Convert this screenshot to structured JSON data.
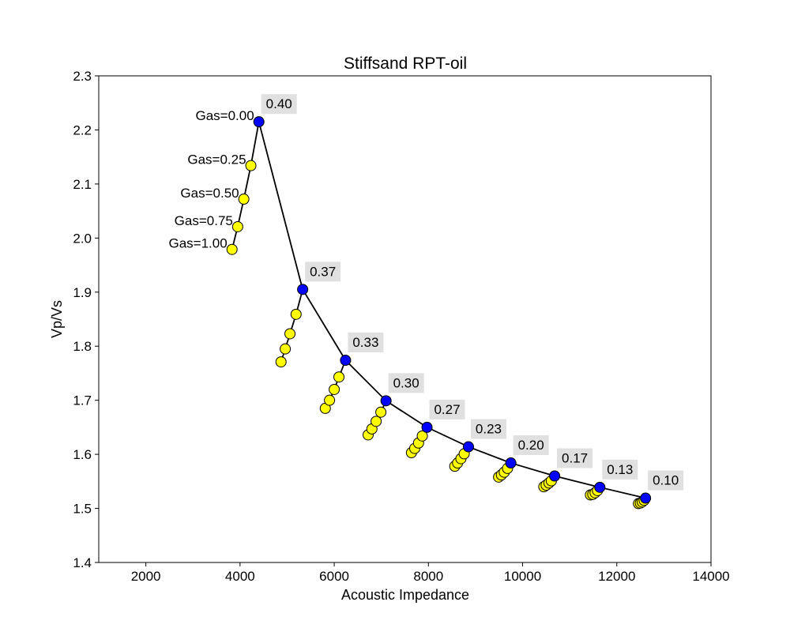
{
  "chart_data": {
    "type": "scatter",
    "title": "Stiffsand RPT-oil",
    "xlabel": "Acoustic Impedance",
    "ylabel": "Vp/Vs",
    "xlim": [
      1000,
      14000
    ],
    "ylim": [
      1.4,
      2.3
    ],
    "xticks": [
      2000,
      4000,
      6000,
      8000,
      10000,
      12000,
      14000
    ],
    "xtick_labels": [
      "2000",
      "4000",
      "6000",
      "8000",
      "10000",
      "12000",
      "14000"
    ],
    "yticks": [
      1.4,
      1.5,
      1.6,
      1.7,
      1.8,
      1.9,
      2.0,
      2.1,
      2.2,
      2.3
    ],
    "ytick_labels": [
      "1.4",
      "1.5",
      "1.6",
      "1.7",
      "1.8",
      "1.9",
      "2.0",
      "2.1",
      "2.2",
      "2.3"
    ],
    "grid": false,
    "colors": {
      "porosity_marker": "#0000ff",
      "gas_marker": "#ffff00",
      "line": "#000000",
      "label_box": "#e0e0e0"
    },
    "porosity_line": {
      "labels": [
        "0.40",
        "0.37",
        "0.33",
        "0.30",
        "0.27",
        "0.23",
        "0.20",
        "0.17",
        "0.13",
        "0.10"
      ],
      "x": [
        4400,
        5330,
        6240,
        7100,
        7970,
        8850,
        9750,
        10680,
        11640,
        12610
      ],
      "y": [
        2.215,
        1.905,
        1.774,
        1.699,
        1.65,
        1.614,
        1.584,
        1.56,
        1.539,
        1.519
      ]
    },
    "gas_labels": [
      "Gas=0.00",
      "Gas=0.25",
      "Gas=0.50",
      "Gas=0.75",
      "Gas=1.00"
    ],
    "gas_series": [
      {
        "x": [
          4230,
          4080,
          3950,
          3830
        ],
        "y": [
          2.134,
          2.072,
          2.021,
          1.979
        ]
      },
      {
        "x": [
          5190,
          5060,
          4960,
          4870
        ],
        "y": [
          1.859,
          1.823,
          1.795,
          1.771
        ]
      },
      {
        "x": [
          6100,
          6000,
          5900,
          5810
        ],
        "y": [
          1.743,
          1.72,
          1.7,
          1.685
        ]
      },
      {
        "x": [
          6990,
          6890,
          6800,
          6720
        ],
        "y": [
          1.678,
          1.661,
          1.647,
          1.636
        ]
      },
      {
        "x": [
          7870,
          7790,
          7710,
          7640
        ],
        "y": [
          1.634,
          1.621,
          1.611,
          1.603
        ]
      },
      {
        "x": [
          8760,
          8690,
          8620,
          8560
        ],
        "y": [
          1.601,
          1.592,
          1.584,
          1.578
        ]
      },
      {
        "x": [
          9680,
          9610,
          9550,
          9490
        ],
        "y": [
          1.574,
          1.567,
          1.562,
          1.558
        ]
      },
      {
        "x": [
          10610,
          10560,
          10500,
          10450
        ],
        "y": [
          1.551,
          1.547,
          1.543,
          1.54
        ]
      },
      {
        "x": [
          11590,
          11540,
          11490,
          11440
        ],
        "y": [
          1.533,
          1.529,
          1.526,
          1.525
        ]
      },
      {
        "x": [
          12580,
          12540,
          12500,
          12460
        ],
        "y": [
          1.515,
          1.512,
          1.51,
          1.509
        ]
      }
    ]
  }
}
